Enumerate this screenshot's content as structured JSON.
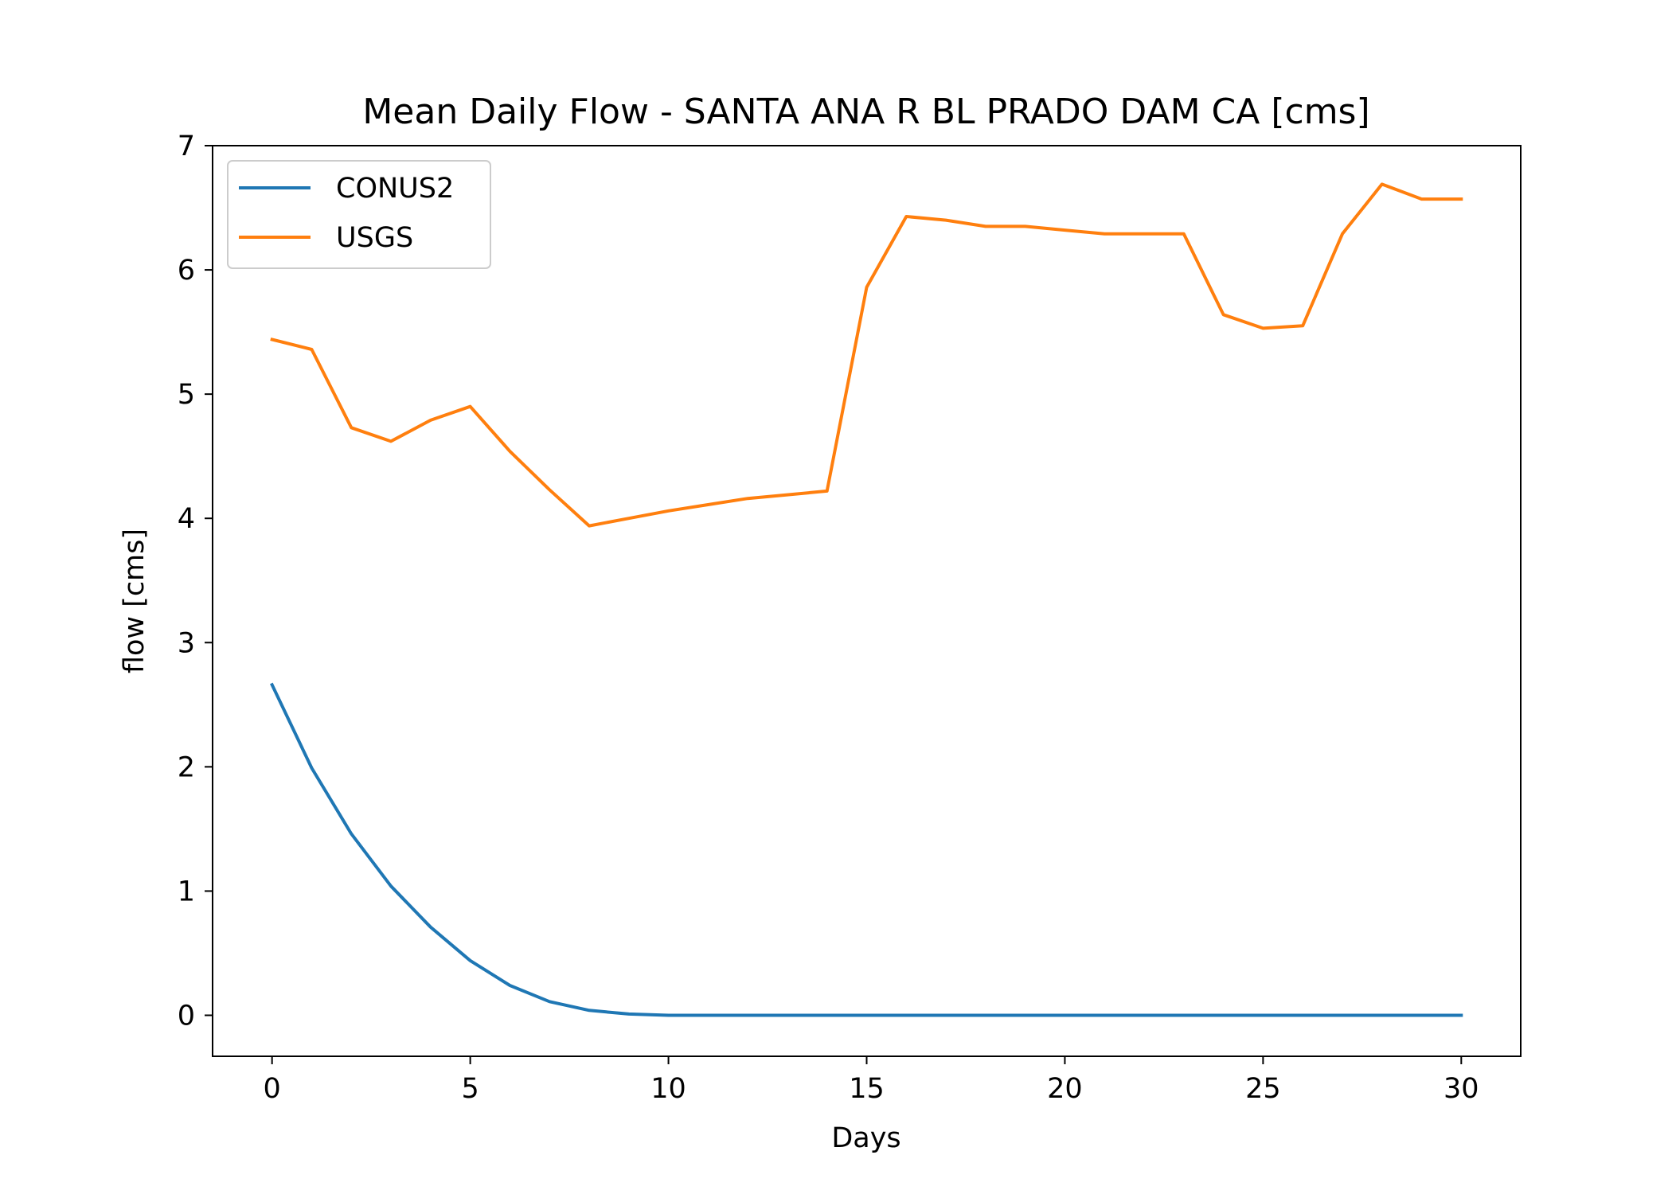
{
  "chart_data": {
    "type": "line",
    "title": "Mean Daily Flow - SANTA ANA R BL PRADO DAM CA [cms]",
    "xlabel": "Days",
    "ylabel": "flow [cms]",
    "xlim": [
      -1.5,
      31.5
    ],
    "ylim": [
      -0.33,
      7
    ],
    "xticks": [
      0,
      5,
      10,
      15,
      20,
      25,
      30
    ],
    "yticks": [
      0,
      1,
      2,
      3,
      4,
      5,
      6,
      7
    ],
    "grid": false,
    "legend_position": "top-left",
    "x": [
      0,
      1,
      2,
      3,
      4,
      5,
      6,
      7,
      8,
      9,
      10,
      11,
      12,
      13,
      14,
      15,
      16,
      17,
      18,
      19,
      20,
      21,
      22,
      23,
      24,
      25,
      26,
      27,
      28,
      29,
      30
    ],
    "series": [
      {
        "name": "CONUS2",
        "color": "#1f77b4",
        "values": [
          2.66,
          1.99,
          1.46,
          1.04,
          0.71,
          0.44,
          0.24,
          0.11,
          0.04,
          0.01,
          0.0,
          0.0,
          0.0,
          0.0,
          0.0,
          0.0,
          0.0,
          0.0,
          0.0,
          0.0,
          0.0,
          0.0,
          0.0,
          0.0,
          0.0,
          0.0,
          0.0,
          0.0,
          0.0,
          0.0,
          0.0
        ]
      },
      {
        "name": "USGS",
        "color": "#ff7f0e",
        "values": [
          5.44,
          5.36,
          4.73,
          4.62,
          4.79,
          4.9,
          4.54,
          4.23,
          3.94,
          4.0,
          4.06,
          4.11,
          4.16,
          4.19,
          4.22,
          5.86,
          6.43,
          6.4,
          6.35,
          6.35,
          6.32,
          6.29,
          6.29,
          6.29,
          5.64,
          5.53,
          5.55,
          6.29,
          6.69,
          6.57,
          6.57
        ]
      }
    ]
  }
}
